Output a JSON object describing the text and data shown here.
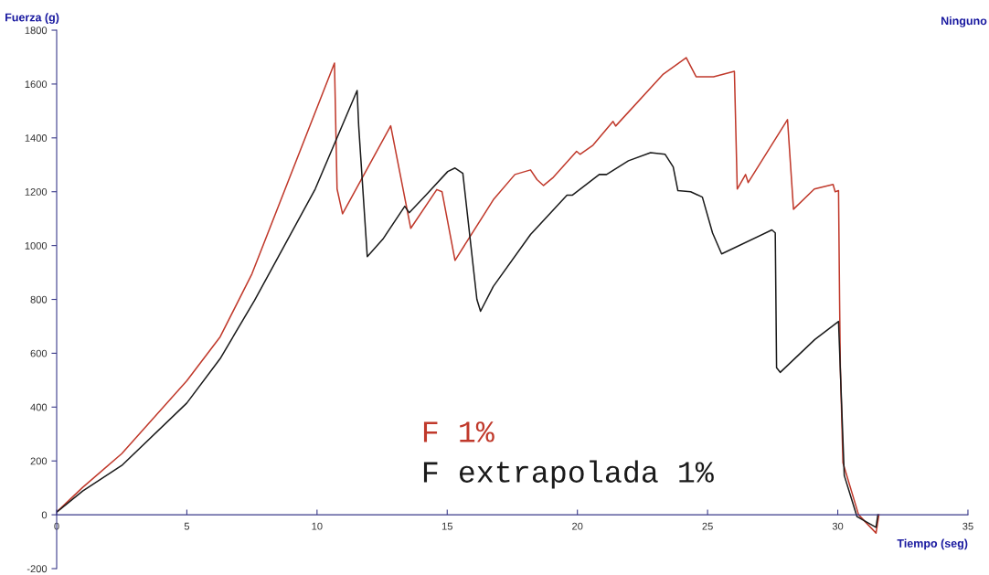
{
  "chart_data": {
    "type": "line",
    "xlabel": "Tiempo (seg)",
    "ylabel": "Fuerza (g)",
    "annotations": [
      "Ninguno"
    ],
    "xlim": [
      0,
      35
    ],
    "xticks": [
      0,
      5,
      10,
      15,
      20,
      25,
      30,
      35
    ],
    "ylim": [
      -200,
      1800
    ],
    "yticks": [
      -200,
      0,
      200,
      400,
      600,
      800,
      1000,
      1200,
      1400,
      1600,
      1800
    ],
    "grid": false,
    "legend": false,
    "series": [
      {
        "name": "F 1%",
        "color": "#c0392b",
        "x": [
          0,
          1,
          2.5,
          5,
          6.28,
          7.5,
          10.67,
          10.77,
          10.98,
          12.83,
          13.6,
          14.6,
          14.8,
          15.3,
          16.77,
          17.6,
          18.2,
          18.45,
          18.7,
          19.05,
          19.97,
          20.1,
          20.6,
          21.37,
          21.47,
          23.3,
          24.18,
          24.56,
          25.23,
          26.03,
          26.14,
          26.46,
          26.56,
          28.07,
          28.3,
          29.1,
          29.82,
          29.9,
          30.03,
          30.07,
          30.1,
          30.2,
          30.8,
          31.47,
          31.58
        ],
        "values": [
          10,
          102,
          227,
          498,
          661,
          895,
          1678,
          1210,
          1118,
          1445,
          1064,
          1208,
          1200,
          945,
          1170,
          1264,
          1281,
          1245,
          1223,
          1251,
          1350,
          1339,
          1373,
          1461,
          1444,
          1637,
          1698,
          1627,
          1627,
          1647,
          1210,
          1264,
          1234,
          1468,
          1135,
          1210,
          1227,
          1200,
          1204,
          800,
          546,
          193,
          0,
          -68,
          0
        ]
      },
      {
        "name": "F extrapolada 1%",
        "color": "#1a1a1a",
        "x": [
          0,
          1,
          2.5,
          5,
          6.28,
          7.6,
          9.93,
          11.54,
          11.6,
          11.93,
          12.53,
          13.37,
          13.54,
          14.18,
          15.02,
          15.3,
          15.6,
          16.14,
          16.28,
          16.77,
          18.2,
          19.6,
          19.8,
          20.84,
          21.12,
          21.96,
          22.81,
          23.37,
          23.68,
          23.86,
          24.35,
          24.8,
          25.19,
          25.54,
          27.47,
          27.6,
          27.65,
          27.79,
          29.12,
          30.03,
          30.25,
          30.74,
          31.47,
          31.54
        ],
        "values": [
          10,
          88,
          183,
          415,
          580,
          796,
          1210,
          1576,
          1444,
          959,
          1024,
          1146,
          1122,
          1187,
          1275,
          1288,
          1268,
          800,
          756,
          848,
          1041,
          1187,
          1187,
          1264,
          1264,
          1315,
          1345,
          1339,
          1292,
          1204,
          1200,
          1180,
          1047,
          969,
          1058,
          1047,
          546,
          529,
          651,
          718,
          146,
          -7,
          -47,
          0
        ]
      }
    ]
  }
}
